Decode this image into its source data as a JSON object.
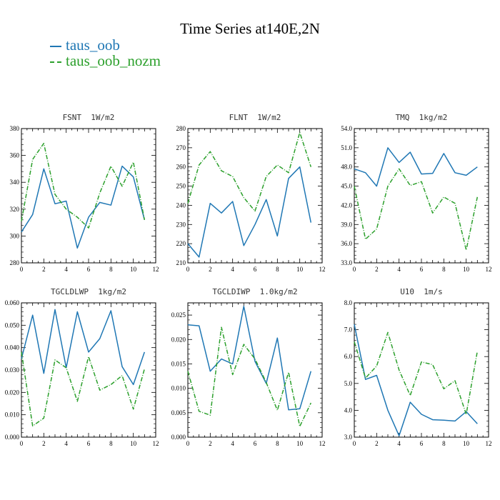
{
  "title": "Time Series at140E,2N",
  "colors": {
    "oob": "#1f77b4",
    "nozm": "#2ca02c"
  },
  "legend": [
    {
      "label": "taus_oob",
      "color": "#1f77b4"
    },
    {
      "label": "taus_oob_nozm",
      "color": "#2ca02c"
    }
  ],
  "chart_data": [
    {
      "type": "line",
      "title": "FSNT  1W/m2",
      "xlim": [
        0,
        12
      ],
      "ylim": [
        280,
        380
      ],
      "xticks": [
        0,
        2,
        4,
        6,
        8,
        10,
        12
      ],
      "yticks": [
        280,
        300,
        320,
        340,
        360,
        380
      ],
      "ytick_labels": [
        "280",
        "300",
        "320",
        "340",
        "360",
        "380"
      ],
      "x": [
        0,
        1,
        2,
        3,
        4,
        5,
        6,
        7,
        8,
        9,
        10,
        11
      ],
      "series": [
        {
          "name": "taus_oob",
          "values": [
            303,
            316,
            350,
            324,
            326,
            291,
            314,
            325,
            323,
            352,
            344,
            312
          ]
        },
        {
          "name": "taus_oob_nozm",
          "values": [
            311,
            357,
            369,
            331,
            320,
            314,
            306,
            332,
            352,
            337,
            355,
            312
          ]
        }
      ]
    },
    {
      "type": "line",
      "title": "FLNT  1W/m2",
      "xlim": [
        0,
        12
      ],
      "ylim": [
        210,
        280
      ],
      "xticks": [
        0,
        2,
        4,
        6,
        8,
        10,
        12
      ],
      "yticks": [
        210,
        220,
        230,
        240,
        250,
        260,
        270,
        280
      ],
      "ytick_labels": [
        "210",
        "220",
        "230",
        "240",
        "250",
        "260",
        "270",
        "280"
      ],
      "x": [
        0,
        1,
        2,
        3,
        4,
        5,
        6,
        7,
        8,
        9,
        10,
        11
      ],
      "series": [
        {
          "name": "taus_oob",
          "values": [
            220,
            213,
            241,
            236,
            242,
            219,
            230,
            243,
            224,
            254,
            260,
            231
          ]
        },
        {
          "name": "taus_oob_nozm",
          "values": [
            241,
            261,
            268,
            258,
            255,
            244,
            237,
            255,
            261,
            257,
            278,
            260
          ]
        }
      ]
    },
    {
      "type": "line",
      "title": "TMQ  1kg/m2",
      "xlim": [
        0,
        12
      ],
      "ylim": [
        33,
        54
      ],
      "xticks": [
        0,
        2,
        4,
        6,
        8,
        10,
        12
      ],
      "yticks": [
        33,
        36,
        39,
        42,
        45,
        48,
        51,
        54
      ],
      "ytick_labels": [
        "33.0",
        "36.0",
        "39.0",
        "42.0",
        "45.0",
        "48.0",
        "51.0",
        "54.0"
      ],
      "x": [
        0,
        1,
        2,
        3,
        4,
        5,
        6,
        7,
        8,
        9,
        10,
        11
      ],
      "series": [
        {
          "name": "taus_oob",
          "values": [
            47.7,
            47.1,
            45.0,
            51.0,
            48.7,
            50.3,
            46.9,
            47.0,
            50.1,
            47.1,
            46.7,
            48.0
          ]
        },
        {
          "name": "taus_oob_nozm",
          "values": [
            45.0,
            36.7,
            38.3,
            45.0,
            47.7,
            45.1,
            45.7,
            40.8,
            43.3,
            42.3,
            35.0,
            43.3
          ]
        }
      ]
    },
    {
      "type": "line",
      "title": "TGCLDLWP  1kg/m2",
      "xlim": [
        0,
        12
      ],
      "ylim": [
        0,
        0.06
      ],
      "xticks": [
        0,
        2,
        4,
        6,
        8,
        10,
        12
      ],
      "yticks": [
        0,
        0.01,
        0.02,
        0.03,
        0.04,
        0.05,
        0.06
      ],
      "ytick_labels": [
        "0.000",
        "0.010",
        "0.020",
        "0.030",
        "0.040",
        "0.050",
        "0.060"
      ],
      "x": [
        0,
        1,
        2,
        3,
        4,
        5,
        6,
        7,
        8,
        9,
        10,
        11
      ],
      "series": [
        {
          "name": "taus_oob",
          "values": [
            0.035,
            0.0545,
            0.0285,
            0.057,
            0.031,
            0.056,
            0.038,
            0.044,
            0.0565,
            0.0315,
            0.0235,
            0.038
          ]
        },
        {
          "name": "taus_oob_nozm",
          "values": [
            0.038,
            0.005,
            0.0085,
            0.0345,
            0.031,
            0.016,
            0.036,
            0.021,
            0.0235,
            0.0275,
            0.0125,
            0.0305
          ]
        }
      ]
    },
    {
      "type": "line",
      "title": "TGCLDIWP  1.0kg/m2",
      "xlim": [
        0,
        12
      ],
      "ylim": [
        0,
        0.0275
      ],
      "xticks": [
        0,
        2,
        4,
        6,
        8,
        10,
        12
      ],
      "yticks": [
        0,
        0.005,
        0.01,
        0.015,
        0.02,
        0.025
      ],
      "ytick_labels": [
        "0.000",
        "0.005",
        "0.010",
        "0.015",
        "0.020",
        "0.025"
      ],
      "x": [
        0,
        1,
        2,
        3,
        4,
        5,
        6,
        7,
        8,
        9,
        10,
        11
      ],
      "series": [
        {
          "name": "taus_oob",
          "values": [
            0.023,
            0.0228,
            0.0135,
            0.016,
            0.015,
            0.0268,
            0.0155,
            0.011,
            0.0203,
            0.0056,
            0.0058,
            0.0135
          ]
        },
        {
          "name": "taus_oob_nozm",
          "values": [
            0.0135,
            0.0053,
            0.0045,
            0.0225,
            0.0128,
            0.019,
            0.016,
            0.0112,
            0.0055,
            0.0133,
            0.0022,
            0.007
          ]
        }
      ]
    },
    {
      "type": "line",
      "title": "U10  1m/s",
      "xlim": [
        0,
        12
      ],
      "ylim": [
        3,
        8
      ],
      "xticks": [
        0,
        2,
        4,
        6,
        8,
        10,
        12
      ],
      "yticks": [
        3,
        4,
        5,
        6,
        7,
        8
      ],
      "ytick_labels": [
        "3.0",
        "4.0",
        "5.0",
        "6.0",
        "7.0",
        "8.0"
      ],
      "x": [
        0,
        1,
        2,
        3,
        4,
        5,
        6,
        7,
        8,
        9,
        10,
        11
      ],
      "series": [
        {
          "name": "taus_oob",
          "values": [
            7.2,
            5.15,
            5.3,
            4.0,
            3.05,
            4.3,
            3.85,
            3.65,
            3.63,
            3.6,
            3.95,
            3.5
          ]
        },
        {
          "name": "taus_oob_nozm",
          "values": [
            6.55,
            5.2,
            5.65,
            6.9,
            5.5,
            4.55,
            5.8,
            5.7,
            4.8,
            5.1,
            3.85,
            6.2
          ]
        }
      ]
    }
  ]
}
